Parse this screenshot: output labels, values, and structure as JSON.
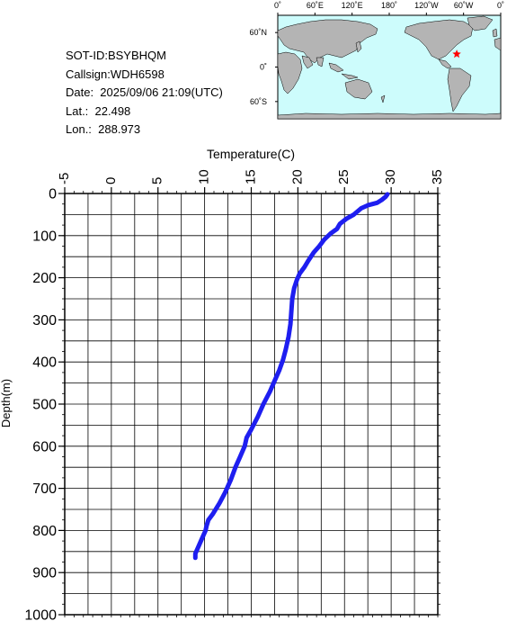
{
  "info": {
    "sot_id": "SOT-ID:BSYBHQM",
    "callsign": "Callsign:WDH6598",
    "date": "Date:  2025/09/06 21:09(UTC)",
    "lat": "Lat.:  22.498",
    "lon": "Lon.:  288.973"
  },
  "map": {
    "top_labels": [
      "0˚",
      "60˚E",
      "120˚E",
      "180˚",
      "120˚W",
      "60˚W",
      "0˚"
    ],
    "lat_labels": [
      "60˚N",
      "0˚",
      "60˚S"
    ],
    "marker": {
      "lon": 288.973,
      "lat": 22.498,
      "color": "#ff0000"
    },
    "ocean_color": "#cdfcfc",
    "land_color": "#b4b4b4"
  },
  "chart_data": {
    "type": "line",
    "xlabel": "Temperature(C)",
    "ylabel": "Depth(m)",
    "xlim": [
      -5,
      35
    ],
    "ylim": [
      0,
      1000
    ],
    "xticks": [
      "-5",
      "0",
      "5",
      "10",
      "15",
      "20",
      "25",
      "30",
      "35"
    ],
    "yticks": [
      "0",
      "100",
      "200",
      "300",
      "400",
      "500",
      "600",
      "700",
      "800",
      "900",
      "1000"
    ],
    "grid": true,
    "series": [
      {
        "color": "#1e1ef0",
        "points": [
          [
            29.6,
            2
          ],
          [
            29.4,
            8
          ],
          [
            29.0,
            15
          ],
          [
            28.5,
            22
          ],
          [
            27.5,
            28
          ],
          [
            26.8,
            35
          ],
          [
            26.0,
            50
          ],
          [
            25.2,
            60
          ],
          [
            24.5,
            72
          ],
          [
            24.2,
            84
          ],
          [
            23.5,
            95
          ],
          [
            22.8,
            110
          ],
          [
            22.3,
            125
          ],
          [
            21.7,
            140
          ],
          [
            21.1,
            160
          ],
          [
            20.7,
            175
          ],
          [
            20.2,
            190
          ],
          [
            19.9,
            205
          ],
          [
            19.6,
            225
          ],
          [
            19.4,
            250
          ],
          [
            19.3,
            280
          ],
          [
            19.2,
            310
          ],
          [
            19.0,
            340
          ],
          [
            18.7,
            370
          ],
          [
            18.4,
            395
          ],
          [
            18.0,
            420
          ],
          [
            17.5,
            445
          ],
          [
            17.0,
            470
          ],
          [
            16.3,
            500
          ],
          [
            15.7,
            530
          ],
          [
            15.0,
            560
          ],
          [
            14.5,
            580
          ],
          [
            14.3,
            600
          ],
          [
            13.8,
            625
          ],
          [
            13.3,
            650
          ],
          [
            12.8,
            680
          ],
          [
            12.2,
            710
          ],
          [
            11.6,
            735
          ],
          [
            10.9,
            760
          ],
          [
            10.4,
            775
          ],
          [
            10.2,
            790
          ],
          [
            10.1,
            800
          ],
          [
            9.7,
            820
          ],
          [
            9.3,
            840
          ],
          [
            9.0,
            855
          ],
          [
            9.0,
            865
          ]
        ]
      }
    ]
  }
}
